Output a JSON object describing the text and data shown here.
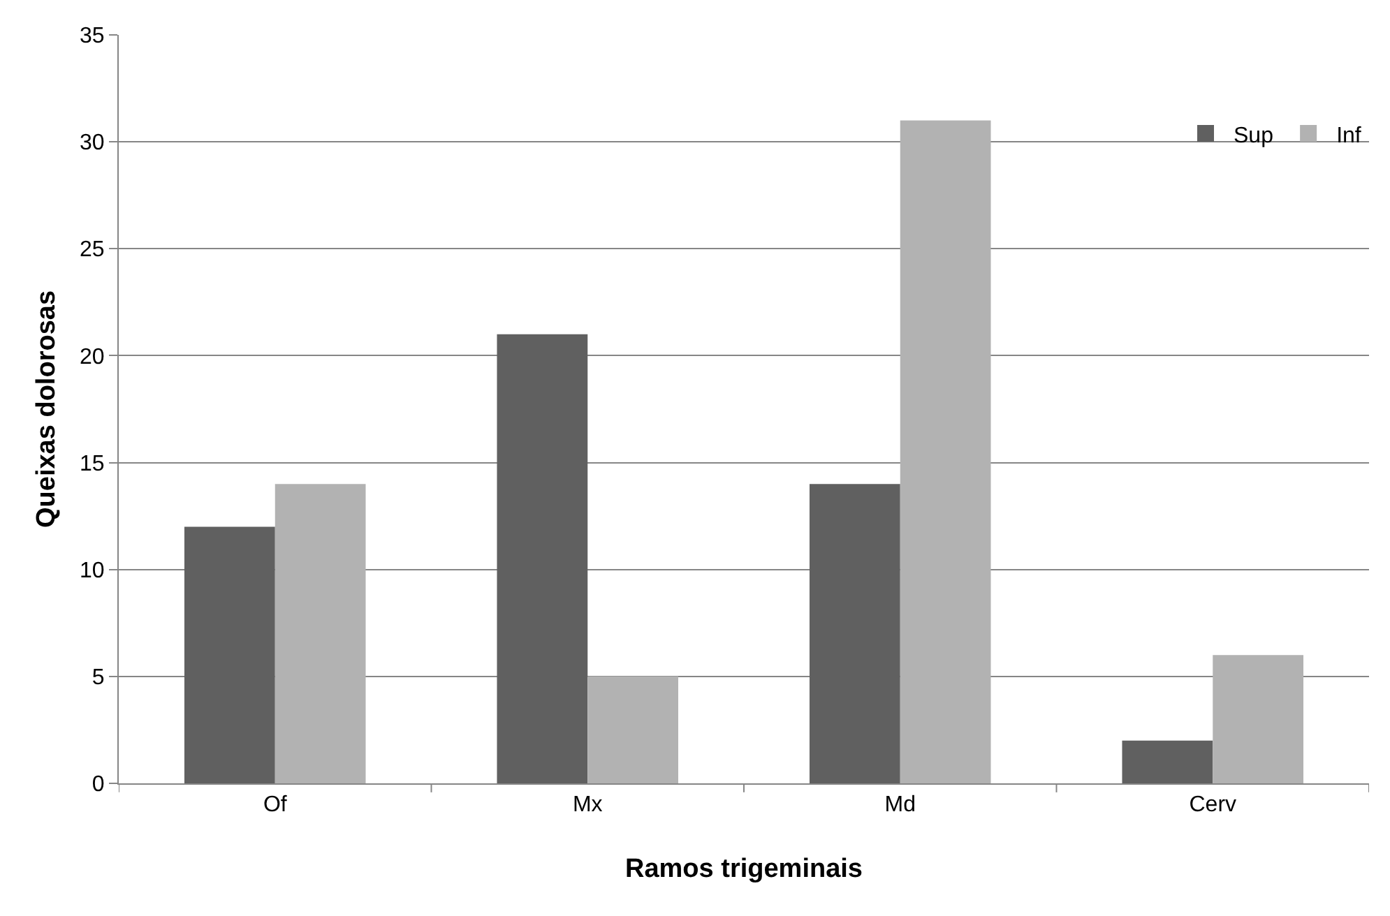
{
  "chart_data": {
    "type": "bar",
    "xlabel": "Ramos trigeminais",
    "ylabel": "Queixas dolorosas",
    "categories": [
      "Of",
      "Mx",
      "Md",
      "Cerv"
    ],
    "series": [
      {
        "name": "Sup",
        "color": "#606060",
        "values": [
          12,
          21,
          14,
          2
        ]
      },
      {
        "name": "Inf",
        "color": "#b2b2b2",
        "values": [
          14,
          5,
          31,
          6
        ]
      }
    ],
    "ylim": [
      0,
      35
    ],
    "yticks": [
      0,
      5,
      10,
      15,
      20,
      25,
      30,
      35
    ],
    "grid": "y",
    "legend": "top right"
  }
}
